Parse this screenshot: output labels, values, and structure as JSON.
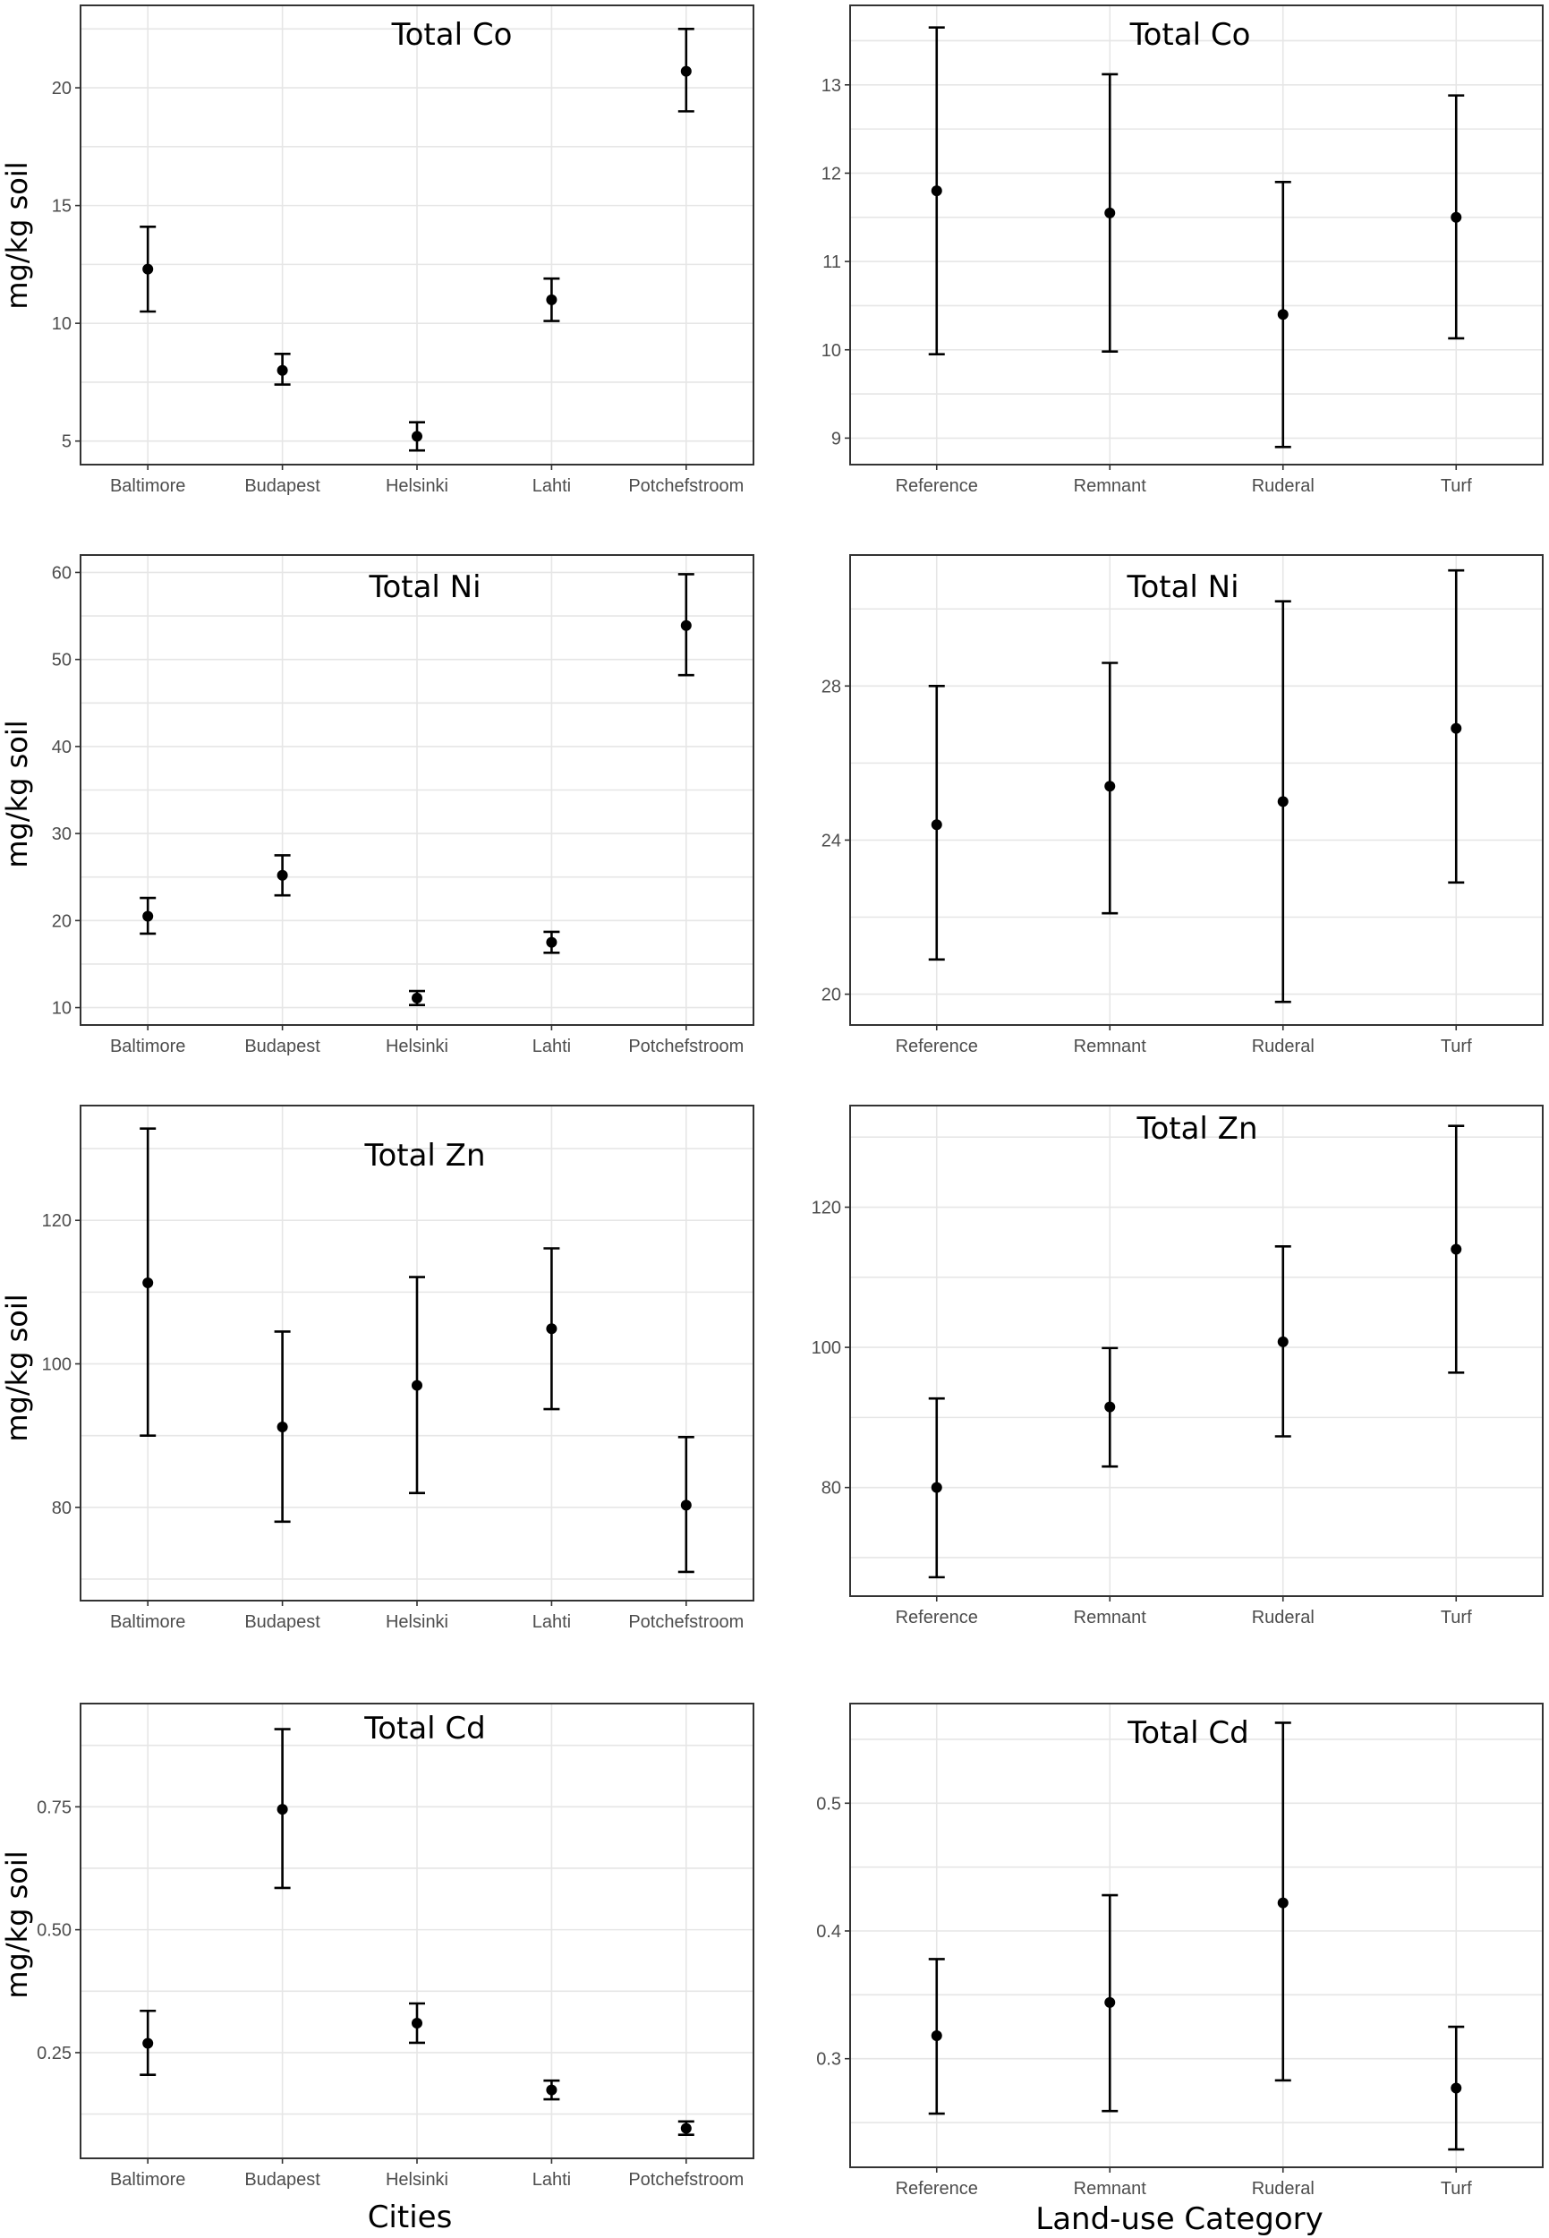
{
  "figure": {
    "y_axis_label": "mg/kg soil",
    "left_x_axis_label": "Cities",
    "right_x_axis_label": "Land-use Category"
  },
  "chart_data": [
    {
      "type": "scatter",
      "style": "point-with-error-bars",
      "title": "Total Co",
      "categories": [
        "Baltimore",
        "Budapest",
        "Helsinki",
        "Lahti",
        "Potchefstroom"
      ],
      "values": [
        12.3,
        8.0,
        5.2,
        11.0,
        20.7
      ],
      "lower": [
        10.5,
        7.4,
        4.6,
        10.1,
        19.0
      ],
      "upper": [
        14.1,
        8.7,
        5.8,
        11.9,
        22.5
      ],
      "ylim": [
        4.0,
        23.5
      ],
      "yticks": [
        5,
        10,
        15,
        20
      ],
      "tick_labels": [
        "5",
        "10",
        "15",
        "20"
      ],
      "xlabel": "",
      "ylabel": "mg/kg soil"
    },
    {
      "type": "scatter",
      "style": "point-with-error-bars",
      "title": "Total Co",
      "categories": [
        "Reference",
        "Remnant",
        "Ruderal",
        "Turf"
      ],
      "values": [
        11.8,
        11.55,
        10.4,
        11.5
      ],
      "lower": [
        9.95,
        9.98,
        8.9,
        10.13
      ],
      "upper": [
        13.65,
        13.12,
        11.9,
        12.88
      ],
      "ylim": [
        8.7,
        13.9
      ],
      "yticks": [
        9,
        10,
        11,
        12,
        13
      ],
      "tick_labels": [
        "9",
        "10",
        "11",
        "12",
        "13"
      ],
      "xlabel": "",
      "ylabel": ""
    },
    {
      "type": "scatter",
      "style": "point-with-error-bars",
      "title": "Total Ni",
      "categories": [
        "Baltimore",
        "Budapest",
        "Helsinki",
        "Lahti",
        "Potchefstroom"
      ],
      "values": [
        20.5,
        25.2,
        11.1,
        17.5,
        53.9
      ],
      "lower": [
        18.5,
        22.9,
        10.3,
        16.3,
        48.2
      ],
      "upper": [
        22.6,
        27.5,
        11.9,
        18.7,
        59.8
      ],
      "ylim": [
        8.0,
        62.0
      ],
      "yticks": [
        10,
        20,
        30,
        40,
        50,
        60
      ],
      "tick_labels": [
        "10",
        "20",
        "30",
        "40",
        "50",
        "60"
      ],
      "xlabel": "",
      "ylabel": "mg/kg soil"
    },
    {
      "type": "scatter",
      "style": "point-with-error-bars",
      "title": "Total Ni",
      "categories": [
        "Reference",
        "Remnant",
        "Ruderal",
        "Turf"
      ],
      "values": [
        24.4,
        25.4,
        25.0,
        26.9
      ],
      "lower": [
        20.9,
        22.1,
        19.8,
        22.9
      ],
      "upper": [
        28.0,
        28.6,
        30.2,
        31.0
      ],
      "ylim": [
        19.2,
        31.4
      ],
      "yticks": [
        20,
        24,
        28
      ],
      "tick_labels": [
        "20",
        "24",
        "28"
      ],
      "xlabel": "",
      "ylabel": ""
    },
    {
      "type": "scatter",
      "style": "point-with-error-bars",
      "title": "Total Zn",
      "categories": [
        "Baltimore",
        "Budapest",
        "Helsinki",
        "Lahti",
        "Potchefstroom"
      ],
      "values": [
        111.3,
        91.2,
        97.0,
        104.9,
        80.3
      ],
      "lower": [
        90.0,
        78.0,
        82.0,
        93.7,
        71.0
      ],
      "upper": [
        132.8,
        104.5,
        112.1,
        116.1,
        89.8
      ],
      "ylim": [
        67.0,
        136.0
      ],
      "yticks": [
        80,
        100,
        120
      ],
      "tick_labels": [
        "80",
        "100",
        "120"
      ],
      "xlabel": "",
      "ylabel": "mg/kg soil"
    },
    {
      "type": "scatter",
      "style": "point-with-error-bars",
      "title": "Total Zn",
      "categories": [
        "Reference",
        "Remnant",
        "Ruderal",
        "Turf"
      ],
      "values": [
        80.0,
        91.5,
        100.8,
        114.0
      ],
      "lower": [
        67.2,
        83.0,
        87.3,
        96.4
      ],
      "upper": [
        92.7,
        99.9,
        114.4,
        131.6
      ],
      "ylim": [
        64.5,
        134.5
      ],
      "yticks": [
        80,
        100,
        120
      ],
      "tick_labels": [
        "80",
        "100",
        "120"
      ],
      "xlabel": "",
      "ylabel": ""
    },
    {
      "type": "scatter",
      "style": "point-with-error-bars",
      "title": "Total Cd",
      "categories": [
        "Baltimore",
        "Budapest",
        "Helsinki",
        "Lahti",
        "Potchefstroom"
      ],
      "values": [
        0.269,
        0.745,
        0.31,
        0.174,
        0.096
      ],
      "lower": [
        0.205,
        0.585,
        0.27,
        0.155,
        0.083
      ],
      "upper": [
        0.335,
        0.908,
        0.35,
        0.193,
        0.11
      ],
      "ylim": [
        0.035,
        0.96
      ],
      "yticks": [
        0.25,
        0.5,
        0.75
      ],
      "tick_labels": [
        "0.25",
        "0.50",
        "0.75"
      ],
      "xlabel": "Cities",
      "ylabel": "mg/kg soil"
    },
    {
      "type": "scatter",
      "style": "point-with-error-bars",
      "title": "Total Cd",
      "categories": [
        "Reference",
        "Remnant",
        "Ruderal",
        "Turf"
      ],
      "values": [
        0.318,
        0.344,
        0.422,
        0.277
      ],
      "lower": [
        0.257,
        0.259,
        0.283,
        0.229
      ],
      "upper": [
        0.378,
        0.428,
        0.563,
        0.325
      ],
      "ylim": [
        0.215,
        0.578
      ],
      "yticks": [
        0.3,
        0.4,
        0.5
      ],
      "tick_labels": [
        "0.3",
        "0.4",
        "0.5"
      ],
      "xlabel": "Land-use Category",
      "ylabel": ""
    }
  ]
}
